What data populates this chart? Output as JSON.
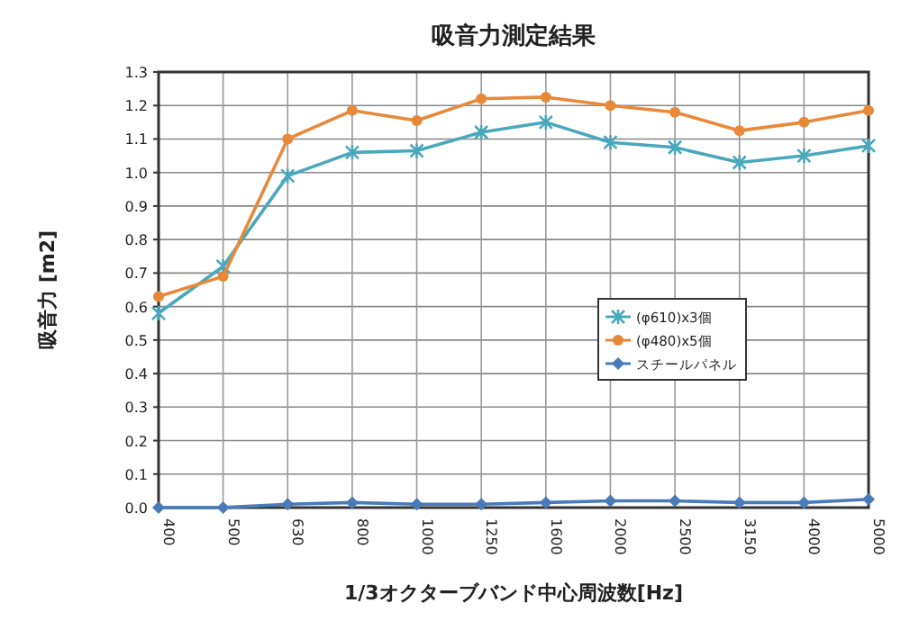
{
  "chart_data": {
    "type": "line",
    "title": "吸音力測定結果",
    "xlabel": "1/3オクターブバンド中心周波数[Hz]",
    "ylabel": "吸音力 [m2]",
    "categories": [
      "400",
      "500",
      "630",
      "800",
      "1000",
      "1250",
      "1600",
      "2000",
      "2500",
      "3150",
      "4000",
      "5000"
    ],
    "ylim": [
      0,
      1.3
    ],
    "yticks": [
      {
        "value": 0,
        "label": "0.0"
      },
      0.1,
      0.2,
      0.3,
      0.4,
      0.5,
      0.6,
      0.7,
      0.8,
      0.9,
      {
        "value": 1,
        "label": "1.0"
      },
      1.1,
      1.2,
      1.3
    ],
    "grid": true,
    "legend": "right",
    "series": [
      {
        "name": "(φ610)x3個",
        "color": "#4aa8bc",
        "marker": "cross",
        "values": [
          0.58,
          0.72,
          0.99,
          1.06,
          1.065,
          1.12,
          1.15,
          1.09,
          1.075,
          1.03,
          1.05,
          1.08
        ]
      },
      {
        "name": "(φ480)x5個",
        "color": "#e8893a",
        "marker": "circle",
        "values": [
          0.63,
          0.69,
          1.1,
          1.185,
          1.155,
          1.22,
          1.225,
          1.2,
          1.18,
          1.125,
          1.15,
          1.185
        ]
      },
      {
        "name": "スチールパネル",
        "color": "#4a7ab8",
        "marker": "diamond",
        "values": [
          0.0,
          0.0,
          0.01,
          0.015,
          0.01,
          0.01,
          0.015,
          0.02,
          0.02,
          0.015,
          0.015,
          0.025
        ]
      }
    ]
  }
}
